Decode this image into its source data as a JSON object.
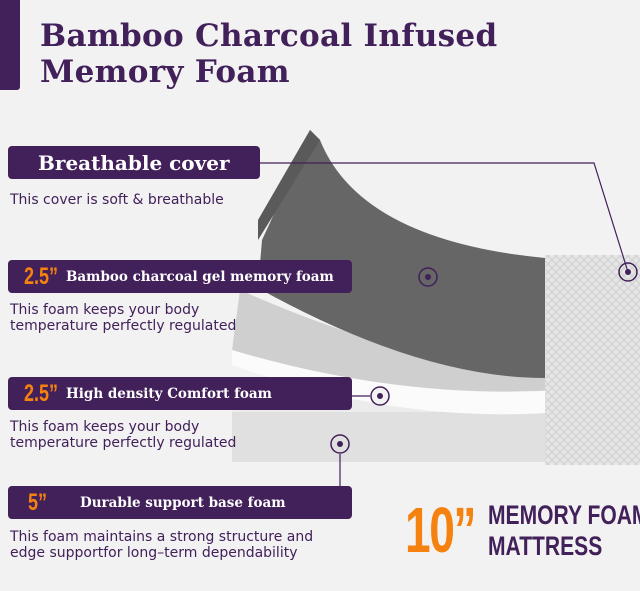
{
  "title": {
    "line1": "Bamboo Charcoal Infused",
    "line2": "Memory Foam"
  },
  "layers": [
    {
      "size": "",
      "label": "Breathable cover",
      "description": "This cover is soft & breathable"
    },
    {
      "size": "2.5”",
      "label": "Bamboo charcoal gel  memory foam",
      "description": "This foam keeps your body\ntemperature perfectly regulated"
    },
    {
      "size": "2.5”",
      "label": "High density Comfort foam",
      "description": "This foam keeps your body\ntemperature perfectly regulated"
    },
    {
      "size": "5”",
      "label": "Durable support base foam",
      "description": "This foam maintains a strong structure and\nedge supportfor long–term dependability"
    }
  ],
  "total": {
    "size": "10”",
    "line1": "MEMORY FOAM",
    "line2": "MATTRESS"
  },
  "colors": {
    "brand": "#42205a",
    "accent": "#f5820f"
  }
}
